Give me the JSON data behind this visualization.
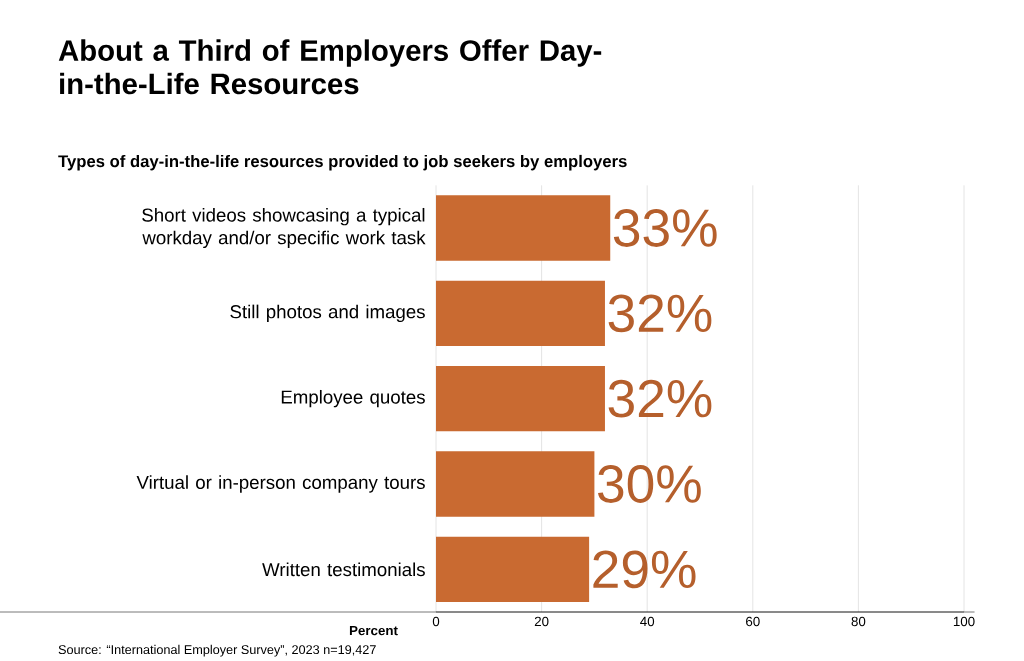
{
  "chart_data": {
    "type": "bar",
    "orientation": "horizontal",
    "title": "About a Third of Employers Offer Day-in-the-Life Resources",
    "subtitle": "Types of day-in-the-life resources provided to job seekers by employers",
    "categories": [
      "Short videos showcasing a typical workday and/or specific work task",
      "Still photos and images",
      "Employee quotes",
      "Virtual or in-person company tours",
      "Written testimonials"
    ],
    "values": [
      33,
      32,
      32,
      30,
      29
    ],
    "value_labels": [
      "33%",
      "32%",
      "32%",
      "30%",
      "29%"
    ],
    "color": "#c96a31",
    "xlabel": "Percent",
    "xlim": [
      0,
      100
    ],
    "xticks": [
      0,
      20,
      40,
      60,
      80,
      100
    ],
    "grid": "x",
    "annotations": [
      "Source: “International Employer Survey”, 2023 n=19,427"
    ]
  }
}
